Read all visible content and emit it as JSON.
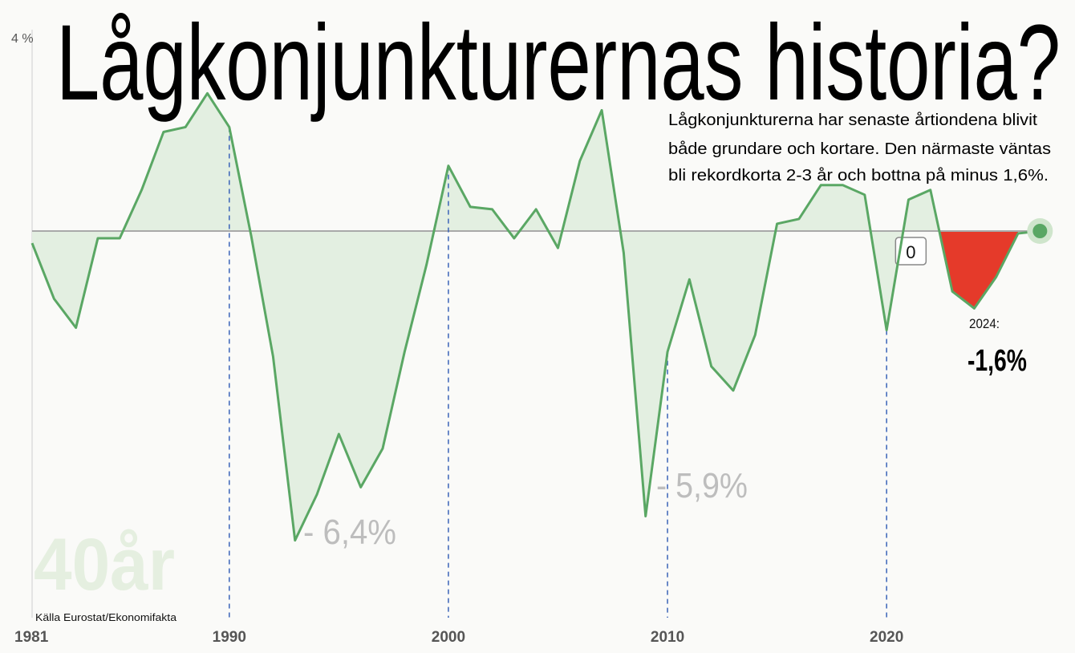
{
  "chart_data": {
    "type": "area",
    "title": "Lågkonjunkturernas historia?",
    "subtitle": [
      "Lågkonjunkturerna har senaste årtiondena blivit",
      "både grundare och kortare. Den närmaste väntas",
      "bli rekordkorta 2-3 år och bottna på minus 1,6%."
    ],
    "source": "Källa Eurostat/Ekonomifakta",
    "watermark": "40år",
    "x": [
      1981,
      1982,
      1983,
      1984,
      1985,
      1986,
      1987,
      1988,
      1989,
      1990,
      1991,
      1992,
      1993,
      1994,
      1995,
      1996,
      1997,
      1998,
      1999,
      2000,
      2001,
      2002,
      2003,
      2004,
      2005,
      2006,
      2007,
      2008,
      2009,
      2010,
      2011,
      2012,
      2013,
      2014,
      2015,
      2016,
      2017,
      2018,
      2019,
      2020,
      2021,
      2022,
      2023,
      2024,
      2025,
      2026,
      2027
    ],
    "series": [
      {
        "color": "#5aa764",
        "fill": "#e3efe1",
        "values": [
          -0.25,
          -1.4,
          -2.0,
          -0.15,
          -0.15,
          0.85,
          2.05,
          2.15,
          2.85,
          2.15,
          -0.1,
          -2.6,
          -6.4,
          -5.45,
          -4.2,
          -5.3,
          -4.5,
          -2.5,
          -0.7,
          1.35,
          0.5,
          0.45,
          -0.15,
          0.45,
          -0.35,
          1.45,
          2.5,
          -0.45,
          -5.9,
          -2.5,
          -1.0,
          -2.8,
          -3.3,
          -2.15,
          0.15,
          0.25,
          0.95,
          0.95,
          0.75,
          -2.05,
          0.65,
          0.85,
          -1.25,
          -1.6,
          -0.95,
          -0.05,
          0.0
        ]
      },
      {
        "color": "#e53a2a",
        "values": [
          null,
          null,
          null,
          null,
          null,
          null,
          null,
          null,
          null,
          null,
          null,
          null,
          null,
          null,
          null,
          null,
          null,
          null,
          null,
          null,
          null,
          null,
          null,
          null,
          null,
          null,
          null,
          null,
          null,
          null,
          null,
          null,
          null,
          null,
          null,
          null,
          null,
          null,
          null,
          null,
          null,
          0.85,
          -1.25,
          -1.6,
          -0.95,
          -0.05,
          null
        ]
      }
    ],
    "annotations": [
      "- 6,4%",
      "- 5,9%",
      "2024:",
      "-1,6%"
    ],
    "xlim": [
      1981,
      2027.5
    ],
    "ylim": [
      -8,
      4
    ],
    "xticks": [
      1981,
      1990,
      2000,
      2010,
      2020
    ],
    "yticks": [
      0,
      {
        "value": 4,
        "label": "4 %"
      }
    ]
  }
}
